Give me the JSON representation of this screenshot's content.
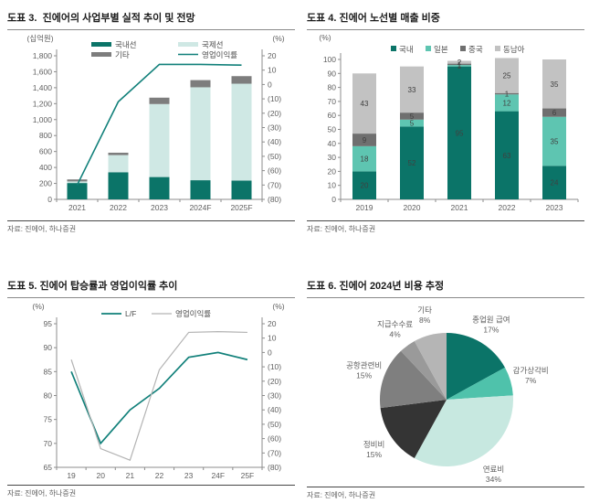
{
  "page": {
    "background": "#ffffff"
  },
  "style": {
    "axis_line_color": "#8c8c8c",
    "tick_text_color": "#5f5f5f",
    "legend_text_color": "#4d4d4d",
    "bar_label_color": "#404040",
    "title_color": "#1b1b1b",
    "source_color": "#5f5f5f"
  },
  "chart_data": [
    {
      "type": "bar",
      "subtype": "stacked-bar-with-line",
      "title": "도표 3.  진에어의 사업부별 실적 추이 및 전망",
      "source": "자료: 진에어, 하나증권",
      "left_axis": {
        "unit": "(십억원)",
        "min": 0,
        "max": 1800,
        "step": 200
      },
      "right_axis": {
        "unit": "(%)",
        "min": -80,
        "max": 20,
        "step": 10,
        "negative_format": "parentheses"
      },
      "categories": [
        "2021",
        "2022",
        "2023",
        "2024F",
        "2025F"
      ],
      "series": [
        {
          "name": "국내선",
          "color": "#0b7468",
          "values": [
            205,
            340,
            280,
            240,
            235
          ]
        },
        {
          "name": "국제선",
          "color": "#cfe8e4",
          "values": [
            20,
            215,
            915,
            1165,
            1215
          ]
        },
        {
          "name": "기타",
          "color": "#7d7d7d",
          "values": [
            25,
            30,
            80,
            90,
            95
          ]
        }
      ],
      "line_series": {
        "name": "영업이익률",
        "axis": "right",
        "color": "#11807a",
        "values": [
          -70,
          -12,
          14,
          14,
          13.5
        ]
      },
      "legend_position": "top",
      "grid": false
    },
    {
      "type": "bar",
      "subtype": "stacked-100",
      "title": "도표 4. 진에어 노선별 매출 비중",
      "source": "자료: 진에어, 하나증권",
      "y_axis": {
        "unit": "(%)",
        "min": 0,
        "max": 100,
        "step": 10
      },
      "categories": [
        "2019",
        "2020",
        "2021",
        "2022",
        "2023"
      ],
      "series": [
        {
          "name": "국내",
          "color": "#0b7468",
          "values": [
            20,
            52,
            95,
            63,
            24
          ]
        },
        {
          "name": "일본",
          "color": "#5ec5b1",
          "values": [
            18,
            5,
            1,
            12,
            35
          ]
        },
        {
          "name": "중국",
          "color": "#6f6f6f",
          "values": [
            9,
            5,
            1,
            1,
            6
          ]
        },
        {
          "name": "동남아",
          "color": "#c2c2c2",
          "values": [
            43,
            33,
            2,
            25,
            35
          ]
        }
      ],
      "show_value_labels": true,
      "legend_position": "top",
      "grid": false
    },
    {
      "type": "line",
      "subtype": "dual-axis",
      "title": "도표 5. 진에어 탑승률과 영업이익률 추이",
      "source": "자료: 진에어, 하나증권",
      "left_axis": {
        "unit": "(%)",
        "min": 65,
        "max": 95,
        "step": 5
      },
      "right_axis": {
        "unit": "(%)",
        "min": -80,
        "max": 20,
        "step": 10,
        "negative_format": "parentheses"
      },
      "categories": [
        "19",
        "20",
        "21",
        "22",
        "23",
        "24F",
        "25F"
      ],
      "series": [
        {
          "name": "L/F",
          "axis": "left",
          "color": "#11807a",
          "values": [
            85,
            70,
            77,
            81.5,
            88,
            89,
            87.5
          ]
        },
        {
          "name": "영업이익률",
          "axis": "right",
          "color": "#b3b3b3",
          "values": [
            -5,
            -67,
            -75,
            -12,
            14,
            14.5,
            14
          ]
        }
      ],
      "legend_position": "top",
      "grid": false
    },
    {
      "type": "pie",
      "title": "도표 6. 진에어 2024년 비용 추정",
      "source": "자료: 진에어, 하나증권",
      "start_angle_deg": 0,
      "direction": "clockwise",
      "slices": [
        {
          "label": "종업원 급여",
          "pct": 17,
          "color": "#0b7468"
        },
        {
          "label": "감가상각비",
          "pct": 7,
          "color": "#4fc2ab"
        },
        {
          "label": "연료비",
          "pct": 34,
          "color": "#c7e8e0"
        },
        {
          "label": "정비비",
          "pct": 15,
          "color": "#343434"
        },
        {
          "label": "공항관련비",
          "pct": 15,
          "color": "#7f7f7f"
        },
        {
          "label": "지급수수료",
          "pct": 4,
          "color": "#9a9a9a"
        },
        {
          "label": "기타",
          "pct": 8,
          "color": "#b5b5b5"
        }
      ]
    }
  ]
}
